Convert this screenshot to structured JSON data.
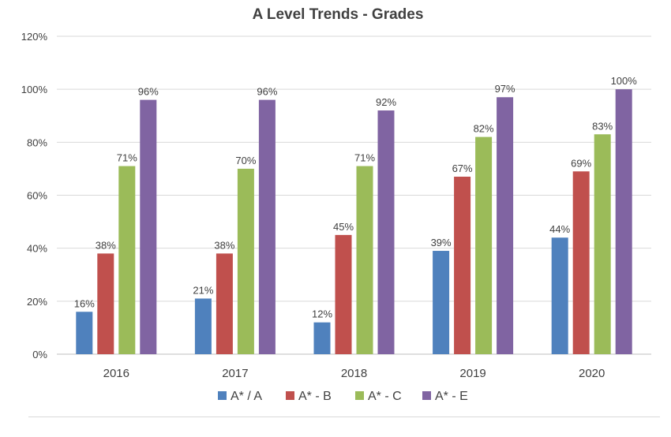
{
  "chart_data": {
    "type": "bar",
    "title": "A Level Trends - Grades",
    "xlabel": "",
    "ylabel": "",
    "categories": [
      "2016",
      "2017",
      "2018",
      "2019",
      "2020"
    ],
    "ylim": [
      0,
      120
    ],
    "yticks": [
      0,
      20,
      40,
      60,
      80,
      100,
      120
    ],
    "ytick_labels": [
      "0%",
      "20%",
      "40%",
      "60%",
      "80%",
      "100%",
      "120%"
    ],
    "grid": true,
    "legend": "bottom",
    "series": [
      {
        "name": "A* / A",
        "color": "#4f81bd",
        "values": [
          16,
          21,
          12,
          39,
          44
        ],
        "labels": [
          "16%",
          "21%",
          "12%",
          "39%",
          "44%"
        ]
      },
      {
        "name": "A* - B",
        "color": "#c0504d",
        "values": [
          38,
          38,
          45,
          67,
          69
        ],
        "labels": [
          "38%",
          "38%",
          "45%",
          "67%",
          "69%"
        ]
      },
      {
        "name": "A* - C",
        "color": "#9bbb59",
        "values": [
          71,
          70,
          71,
          82,
          83
        ],
        "labels": [
          "71%",
          "70%",
          "71%",
          "82%",
          "83%"
        ]
      },
      {
        "name": "A* - E",
        "color": "#8064a2",
        "values": [
          96,
          96,
          92,
          97,
          100
        ],
        "labels": [
          "96%",
          "96%",
          "92%",
          "97%",
          "100%"
        ]
      }
    ]
  }
}
